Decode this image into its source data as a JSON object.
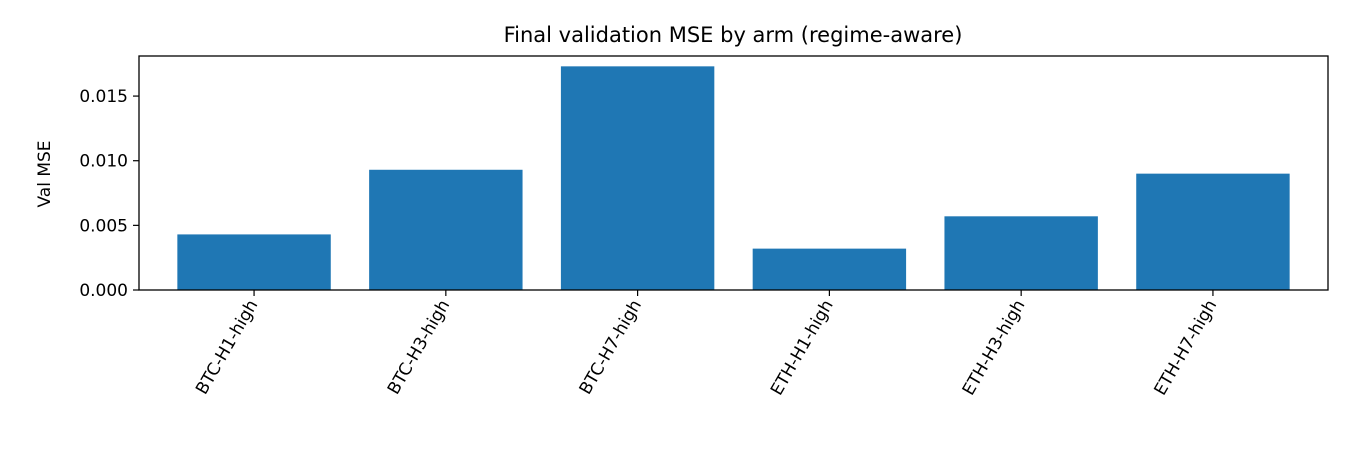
{
  "chart_data": {
    "type": "bar",
    "title": "Final validation MSE by arm (regime-aware)",
    "xlabel": "",
    "ylabel": "Val MSE",
    "categories": [
      "BTC-H1-high",
      "BTC-H3-high",
      "BTC-H7-high",
      "ETH-H1-high",
      "ETH-H3-high",
      "ETH-H7-high"
    ],
    "values": [
      0.0043,
      0.0093,
      0.0173,
      0.0032,
      0.0057,
      0.009
    ],
    "ylim": [
      0,
      0.0181
    ],
    "yticks": [
      0.0,
      0.005,
      0.01,
      0.015
    ],
    "ytick_labels": [
      "0.000",
      "0.005",
      "0.010",
      "0.015"
    ],
    "bar_color": "#1f77b4",
    "grid": false,
    "legend": "none"
  }
}
